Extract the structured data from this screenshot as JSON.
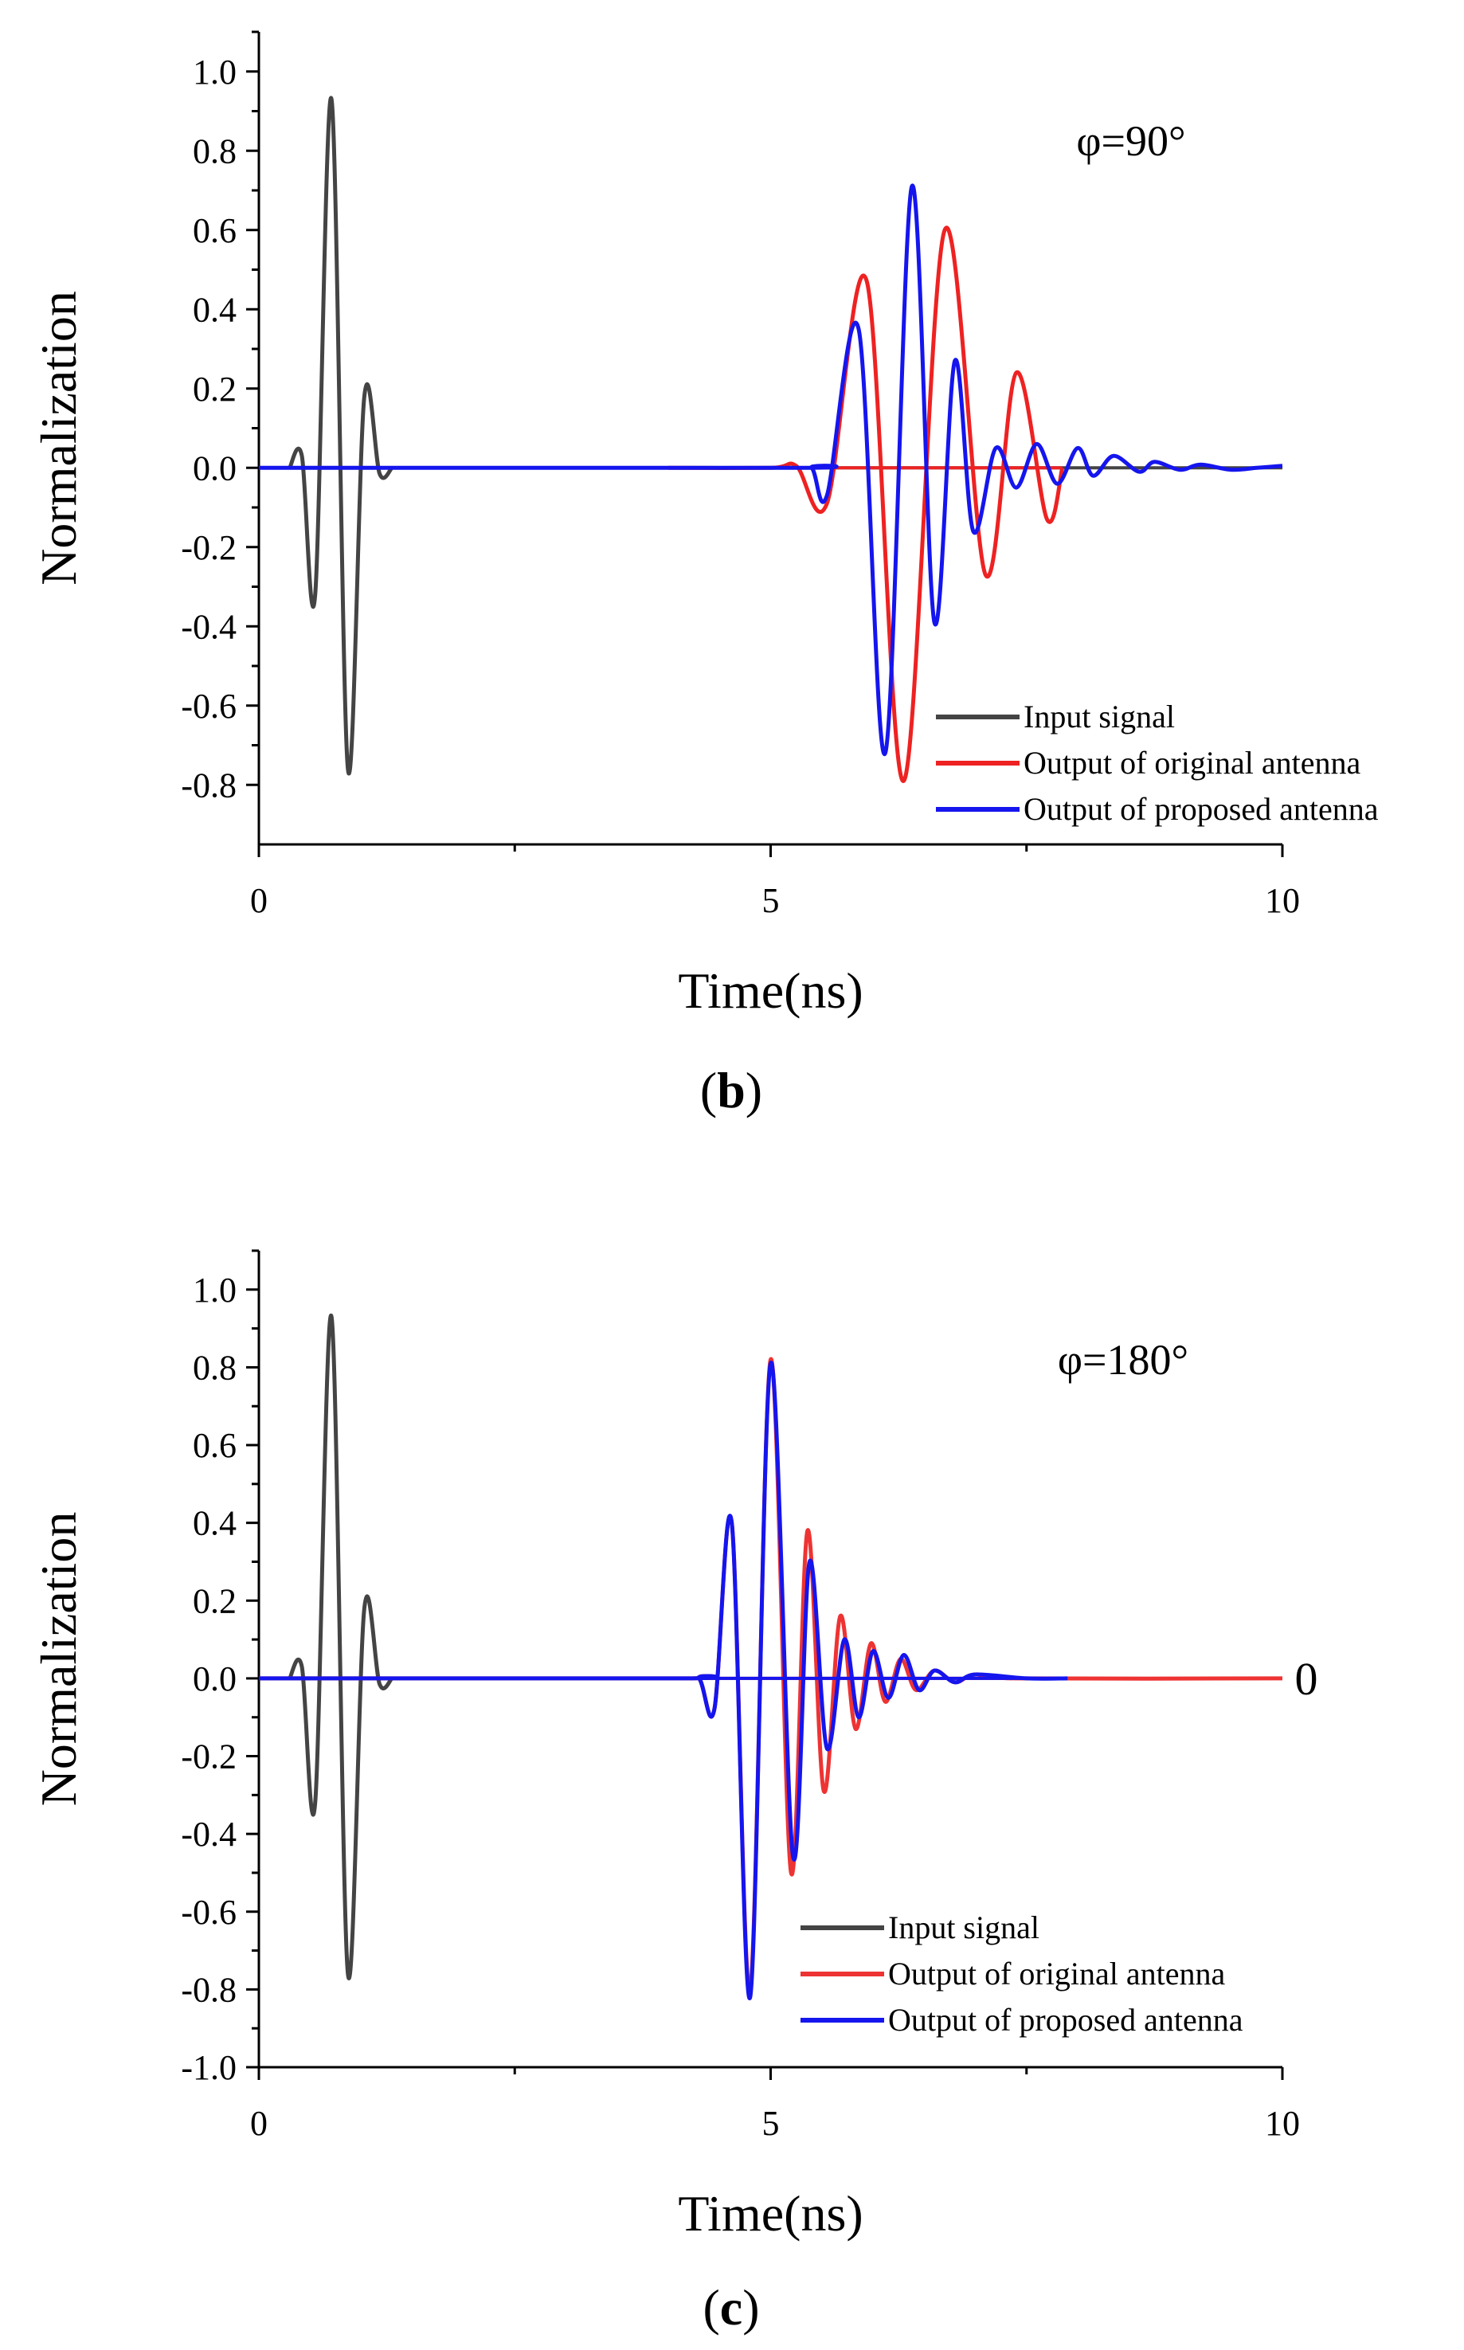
{
  "chart_data": [
    {
      "type": "line",
      "panel_label": "b",
      "annotation": "φ=90°",
      "xlabel": "Time(ns)",
      "ylabel": "Normalization",
      "xlim": [
        0,
        10
      ],
      "ylim": [
        -0.9,
        1.1
      ],
      "xticks": [
        0,
        5,
        10
      ],
      "yticks": [
        -0.8,
        -0.6,
        -0.4,
        -0.2,
        0.0,
        0.2,
        0.4,
        0.6,
        0.8,
        1.0
      ],
      "ytick_labels": [
        "-0.8",
        "-0.6",
        "-0.4",
        "-0.2",
        "0.0",
        "0.2",
        "0.4",
        "0.6",
        "0.8",
        "1.0"
      ],
      "legend_position": "bottom-right",
      "series": [
        {
          "name": "Input signal",
          "color": "#444444",
          "pulses": [
            {
              "t": 0.3,
              "v": 0.0
            },
            {
              "t": 0.42,
              "v": 0.03
            },
            {
              "t": 0.55,
              "v": -0.32
            },
            {
              "t": 0.71,
              "v": 0.93
            },
            {
              "t": 0.87,
              "v": -0.76
            },
            {
              "t": 1.03,
              "v": 0.18
            },
            {
              "t": 1.18,
              "v": -0.015
            },
            {
              "t": 1.3,
              "v": 0.0
            }
          ],
          "baseline_range": [
            0,
            10
          ]
        },
        {
          "name": "Output of original antenna",
          "color": "#ee2222",
          "pulses": [
            {
              "t": 4.0,
              "v": 0.0
            },
            {
              "t": 5.0,
              "v": 0.0
            },
            {
              "t": 5.25,
              "v": 0.005
            },
            {
              "t": 5.55,
              "v": -0.09
            },
            {
              "t": 5.94,
              "v": 0.47
            },
            {
              "t": 6.3,
              "v": -0.79
            },
            {
              "t": 6.7,
              "v": 0.6
            },
            {
              "t": 7.1,
              "v": -0.27
            },
            {
              "t": 7.4,
              "v": 0.24
            },
            {
              "t": 7.7,
              "v": -0.13
            },
            {
              "t": 7.85,
              "v": 0.0
            }
          ],
          "baseline_range": [
            4.0,
            7.85
          ]
        },
        {
          "name": "Output of proposed antenna",
          "color": "#1515ee",
          "pulses": [
            {
              "t": 0.0,
              "v": 0.0
            },
            {
              "t": 5.2,
              "v": 0.0
            },
            {
              "t": 5.4,
              "v": 0.0
            },
            {
              "t": 5.55,
              "v": -0.07
            },
            {
              "t": 5.86,
              "v": 0.35
            },
            {
              "t": 6.12,
              "v": -0.72
            },
            {
              "t": 6.38,
              "v": 0.71
            },
            {
              "t": 6.6,
              "v": -0.39
            },
            {
              "t": 6.8,
              "v": 0.27
            },
            {
              "t": 6.98,
              "v": -0.16
            },
            {
              "t": 7.2,
              "v": 0.05
            },
            {
              "t": 7.4,
              "v": -0.05
            },
            {
              "t": 7.6,
              "v": 0.06
            },
            {
              "t": 7.8,
              "v": -0.04
            },
            {
              "t": 8.0,
              "v": 0.05
            },
            {
              "t": 8.15,
              "v": -0.02
            },
            {
              "t": 8.35,
              "v": 0.03
            },
            {
              "t": 8.6,
              "v": -0.01
            },
            {
              "t": 8.75,
              "v": 0.015
            },
            {
              "t": 9.0,
              "v": -0.005
            },
            {
              "t": 9.2,
              "v": 0.008
            },
            {
              "t": 9.5,
              "v": -0.005
            },
            {
              "t": 9.75,
              "v": 0.0
            },
            {
              "t": 10.0,
              "v": 0.005
            }
          ],
          "baseline_range": [
            0,
            4.0
          ]
        }
      ]
    },
    {
      "type": "line",
      "panel_label": "c",
      "annotation": "φ=180°",
      "end_label": "0",
      "xlabel": "Time(ns)",
      "ylabel": "Normalization",
      "xlim": [
        0,
        10
      ],
      "ylim": [
        -1.0,
        1.1
      ],
      "xticks": [
        0,
        5,
        10
      ],
      "yticks": [
        -1.0,
        -0.8,
        -0.6,
        -0.4,
        -0.2,
        0.0,
        0.2,
        0.4,
        0.6,
        0.8,
        1.0
      ],
      "ytick_labels": [
        "-1.0",
        "-0.8",
        "-0.6",
        "-0.4",
        "-0.2",
        "0.0",
        "0.2",
        "0.4",
        "0.6",
        "0.8",
        "1.0"
      ],
      "legend_position": "bottom-right",
      "series": [
        {
          "name": "Input signal",
          "color": "#444444",
          "pulses": [
            {
              "t": 0.3,
              "v": 0.0
            },
            {
              "t": 0.42,
              "v": 0.03
            },
            {
              "t": 0.55,
              "v": -0.32
            },
            {
              "t": 0.71,
              "v": 0.93
            },
            {
              "t": 0.87,
              "v": -0.76
            },
            {
              "t": 1.03,
              "v": 0.18
            },
            {
              "t": 1.18,
              "v": -0.015
            },
            {
              "t": 1.3,
              "v": 0.0
            }
          ],
          "baseline_range": [
            0,
            4.0
          ]
        },
        {
          "name": "Output of original antenna",
          "color": "#ee3333",
          "pulses": [
            {
              "t": 0.0,
              "v": 0.0
            },
            {
              "t": 4.1,
              "v": 0.0
            },
            {
              "t": 4.3,
              "v": 0.0
            },
            {
              "t": 4.45,
              "v": -0.08
            },
            {
              "t": 4.62,
              "v": 0.4
            },
            {
              "t": 4.8,
              "v": -0.8
            },
            {
              "t": 5.0,
              "v": 0.82
            },
            {
              "t": 5.2,
              "v": -0.5
            },
            {
              "t": 5.36,
              "v": 0.38
            },
            {
              "t": 5.52,
              "v": -0.29
            },
            {
              "t": 5.68,
              "v": 0.16
            },
            {
              "t": 5.83,
              "v": -0.13
            },
            {
              "t": 5.98,
              "v": 0.09
            },
            {
              "t": 6.12,
              "v": -0.06
            },
            {
              "t": 6.27,
              "v": 0.05
            },
            {
              "t": 6.42,
              "v": -0.03
            },
            {
              "t": 6.6,
              "v": 0.02
            },
            {
              "t": 6.8,
              "v": -0.01
            },
            {
              "t": 7.0,
              "v": 0.01
            },
            {
              "t": 7.4,
              "v": 0.0
            },
            {
              "t": 10.0,
              "v": 0.0
            }
          ],
          "baseline_range": [
            0,
            10.0
          ]
        },
        {
          "name": "Output of proposed antenna",
          "color": "#1515ee",
          "pulses": [
            {
              "t": 0.0,
              "v": 0.0
            },
            {
              "t": 4.1,
              "v": 0.0
            },
            {
              "t": 4.3,
              "v": 0.0
            },
            {
              "t": 4.45,
              "v": -0.08
            },
            {
              "t": 4.62,
              "v": 0.4
            },
            {
              "t": 4.8,
              "v": -0.82
            },
            {
              "t": 5.0,
              "v": 0.81
            },
            {
              "t": 5.22,
              "v": -0.46
            },
            {
              "t": 5.38,
              "v": 0.3
            },
            {
              "t": 5.55,
              "v": -0.18
            },
            {
              "t": 5.72,
              "v": 0.1
            },
            {
              "t": 5.86,
              "v": -0.1
            },
            {
              "t": 6.0,
              "v": 0.07
            },
            {
              "t": 6.15,
              "v": -0.05
            },
            {
              "t": 6.3,
              "v": 0.06
            },
            {
              "t": 6.45,
              "v": -0.03
            },
            {
              "t": 6.6,
              "v": 0.02
            },
            {
              "t": 6.8,
              "v": -0.01
            },
            {
              "t": 7.0,
              "v": 0.01
            },
            {
              "t": 7.5,
              "v": 0.0
            },
            {
              "t": 7.9,
              "v": 0.0
            }
          ],
          "baseline_range": [
            0,
            7.9
          ]
        }
      ]
    }
  ]
}
